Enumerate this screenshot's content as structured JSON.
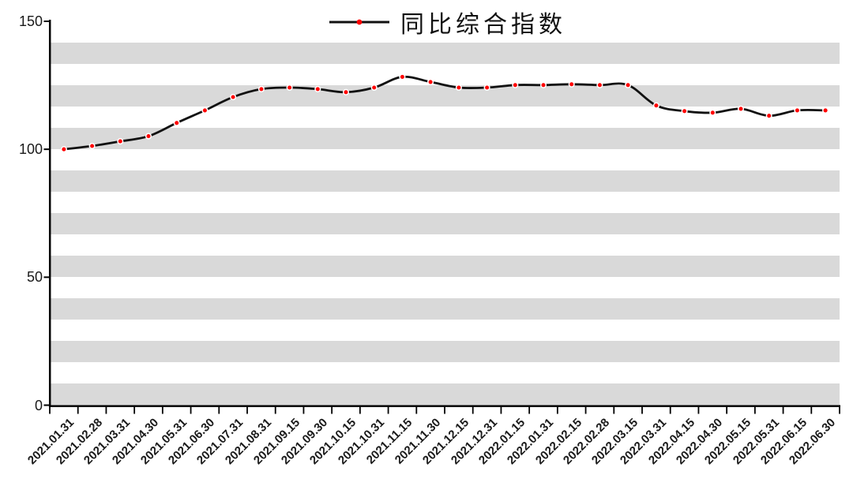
{
  "legend": {
    "label": "同比综合指数"
  },
  "colors": {
    "line": "#111111",
    "marker": "#ff0000",
    "marker_halo": "#ffffff",
    "stripe": "#d9d9d9",
    "axis": "#000000",
    "text": "#1a1a1a"
  },
  "chart_data": {
    "type": "line",
    "title": "",
    "xlabel": "",
    "ylabel": "",
    "ylim": [
      0,
      150
    ],
    "yticks": [
      0,
      50,
      100,
      150
    ],
    "x_tick_label_rotation": 45,
    "legend_position": "top-center",
    "grid": "horizontal gray stripe bands on white plot area",
    "categories": [
      "2021.01.31",
      "2021.02.28",
      "2021.03.31",
      "2021.04.30",
      "2021.05.31",
      "2021.06.30",
      "2021.07.31",
      "2021.08.31",
      "2021.09.15",
      "2021.09.30",
      "2021.10.15",
      "2021.10.31",
      "2021.11.15",
      "2021.11.30",
      "2021.12.15",
      "2021.12.31",
      "2022.01.15",
      "2022.01.31",
      "2022.02.15",
      "2022.02.28",
      "2022.03.15",
      "2022.03.31",
      "2022.04.15",
      "2022.04.30",
      "2022.05.15",
      "2022.05.31",
      "2022.06.15",
      "2022.06.30"
    ],
    "series": [
      {
        "name": "同比综合指数",
        "line_style": "smooth black line with red circular markers",
        "values": [
          100.0,
          101.3,
          103.1,
          105.1,
          110.3,
          115.2,
          120.4,
          123.5,
          124.1,
          123.5,
          122.3,
          124.1,
          128.3,
          126.3,
          124.1,
          124.1,
          125.1,
          125.1,
          125.4,
          125.1,
          125.1,
          117.1,
          114.9,
          114.3,
          115.8,
          113.1,
          115.2,
          115.2
        ]
      }
    ]
  }
}
